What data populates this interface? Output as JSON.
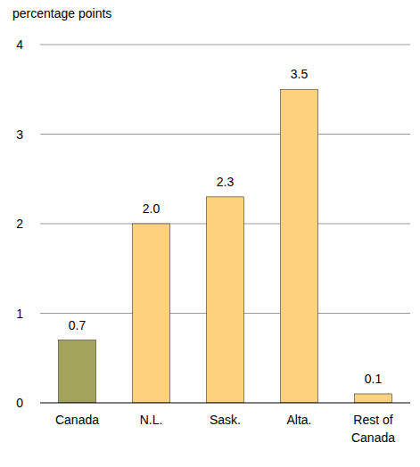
{
  "chart_data": {
    "type": "bar",
    "y_label": "percentage points",
    "categories": [
      "Canada",
      "N.L.",
      "Sask.",
      "Alta.",
      "Rest of Canada"
    ],
    "values": [
      0.7,
      2.0,
      2.3,
      3.5,
      0.1
    ],
    "value_labels": [
      "0.7",
      "2.0",
      "2.3",
      "3.5",
      "0.1"
    ],
    "colors": [
      "#a3a35b",
      "#fdd27f",
      "#fdd27f",
      "#fdd27f",
      "#fdd27f"
    ],
    "ylim": [
      0,
      4
    ],
    "yticks": [
      0,
      1,
      2,
      3,
      4
    ],
    "grid": true,
    "data_labels": true
  }
}
